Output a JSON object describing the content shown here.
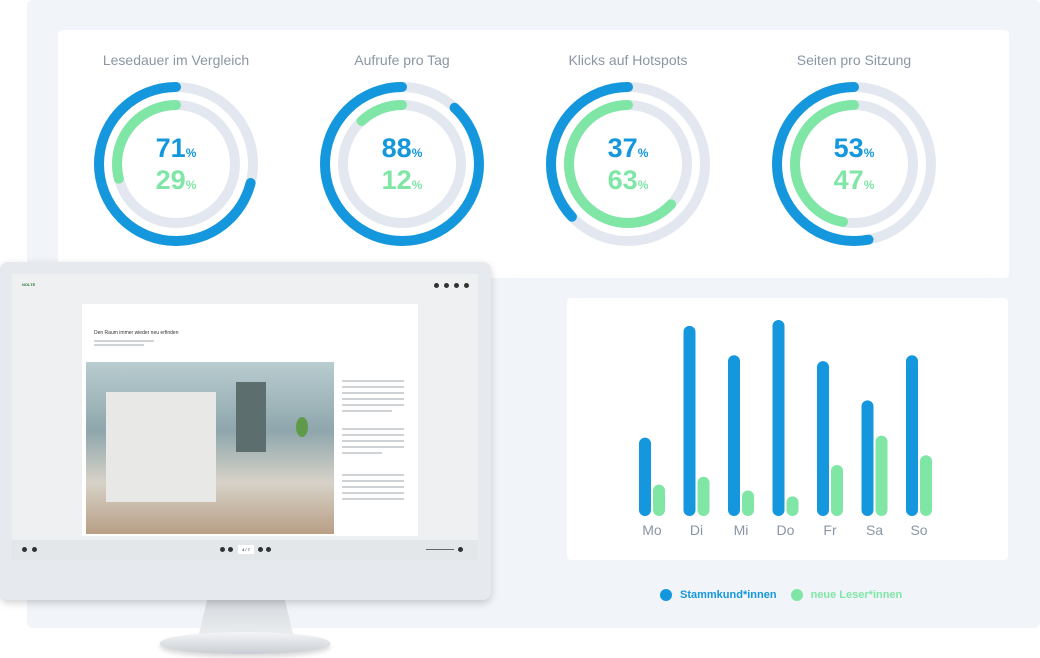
{
  "stats": [
    {
      "title": "Lesedauer im Vergleich",
      "blue_value": "71",
      "green_value": "29",
      "unit": "%",
      "blue_fraction": 0.71,
      "green_fraction": 0.29
    },
    {
      "title": "Aufrufe pro Tag",
      "blue_value": "88",
      "green_value": "12",
      "unit": "%",
      "blue_fraction": 0.88,
      "green_fraction": 0.12
    },
    {
      "title": "Klicks auf Hotspots",
      "blue_value": "37",
      "green_value": "63",
      "unit": "%",
      "blue_fraction": 0.37,
      "green_fraction": 0.63
    },
    {
      "title": "Seiten pro Sitzung",
      "blue_value": "53",
      "green_value": "47",
      "unit": "%",
      "blue_fraction": 0.53,
      "green_fraction": 0.47
    }
  ],
  "chart_data": {
    "type": "bar",
    "categories": [
      "Mo",
      "Di",
      "Mi",
      "Do",
      "Fr",
      "Sa",
      "So"
    ],
    "series": [
      {
        "name": "Stammkund*innen",
        "color": "#1497dc",
        "values": [
          40,
          97,
          82,
          100,
          79,
          59,
          82
        ]
      },
      {
        "name": "neue Leser*innen",
        "color": "#7fe6a6",
        "values": [
          16,
          20,
          13,
          10,
          26,
          41,
          31
        ]
      }
    ],
    "ylim": [
      0,
      100
    ],
    "grid": false,
    "legend": "bottom"
  },
  "legend": {
    "blue_label": "Stammkund*innen",
    "green_label": "neue Leser*innen"
  },
  "colors": {
    "blue": "#1497dc",
    "green": "#7fe6a6",
    "track": "#e3e8f0",
    "label": "#8a96a3"
  },
  "monitor": {
    "brand": "NOLTE",
    "headline": "Den Raum immer wieder neu erfinden",
    "page_indicator": "4 / 7"
  }
}
